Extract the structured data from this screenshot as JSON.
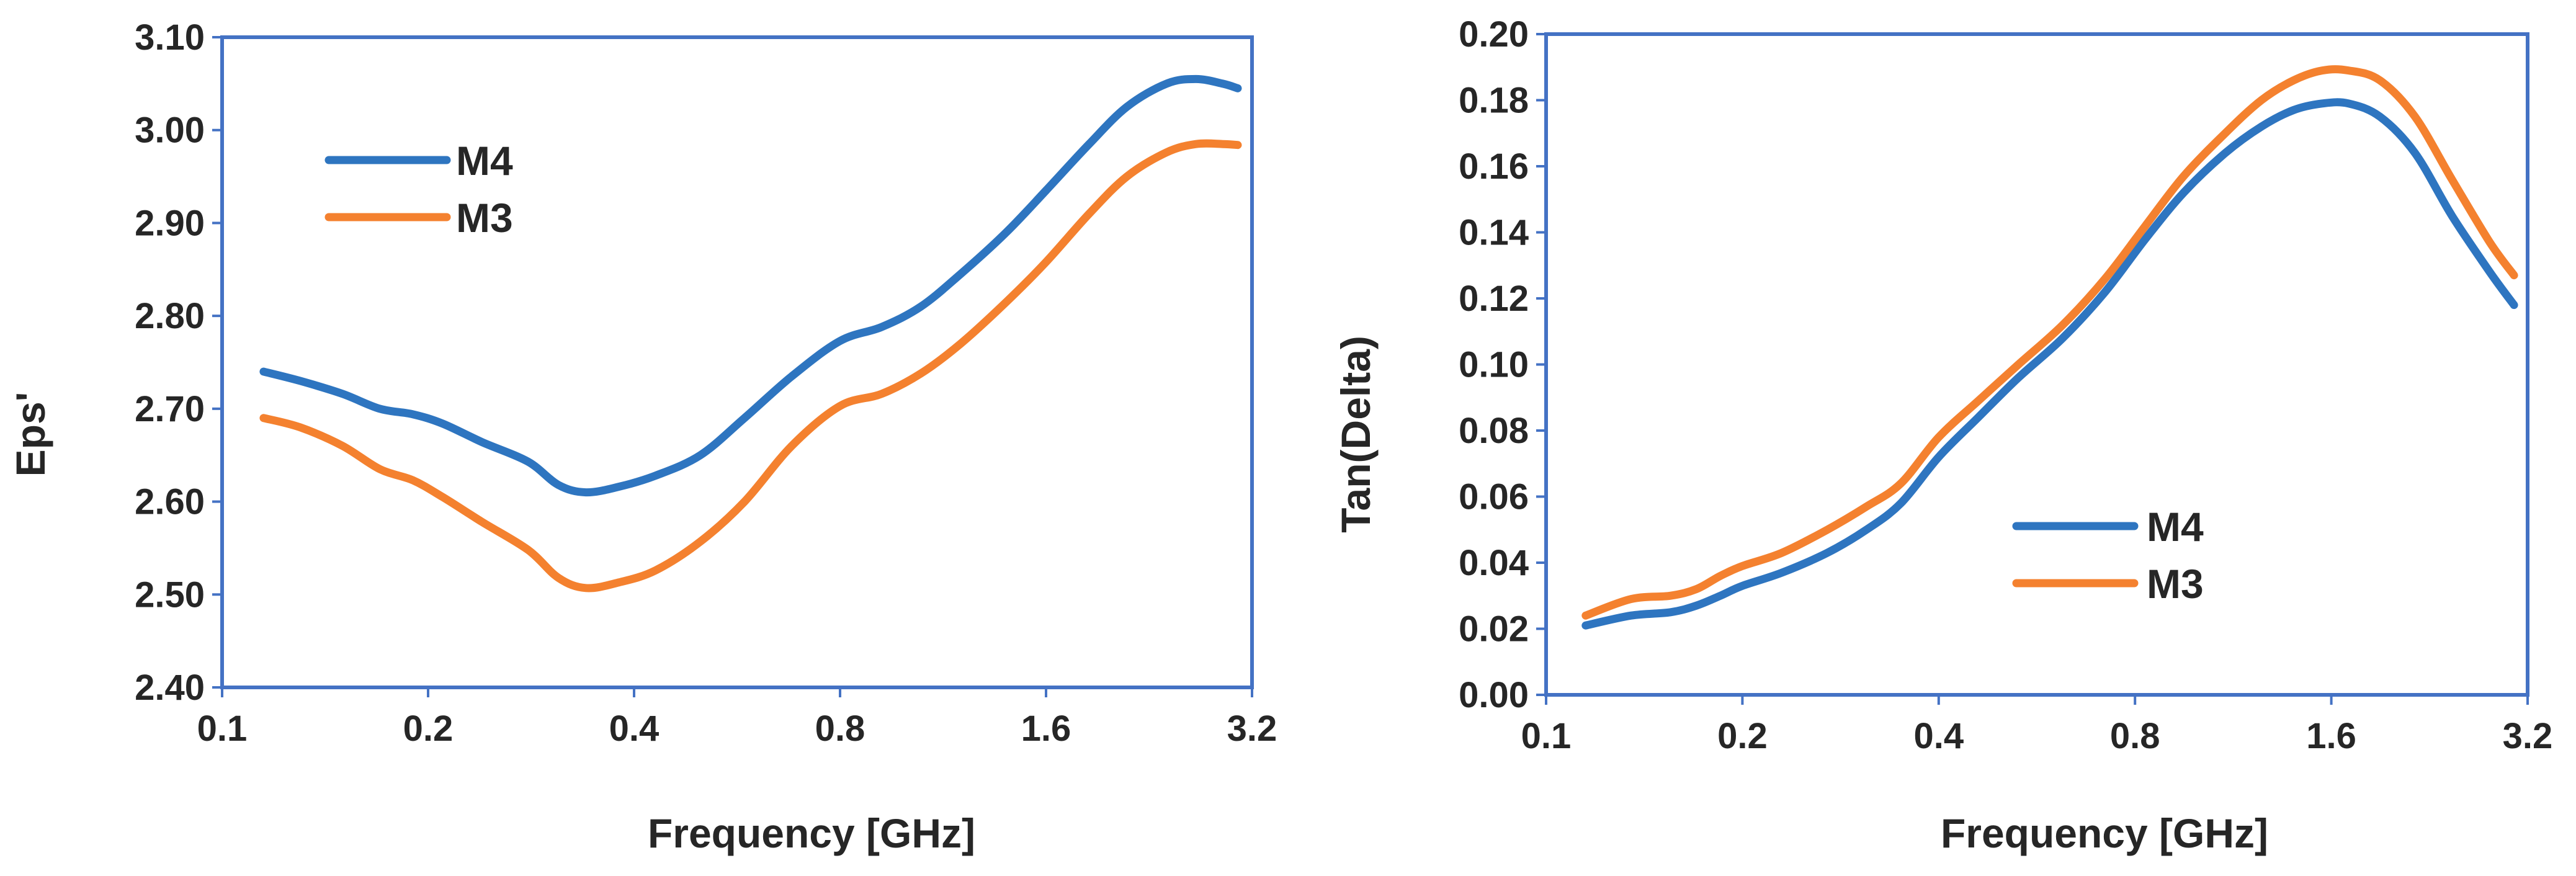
{
  "colors": {
    "frame": "#4472C4",
    "M4": "#2E75C0",
    "M3": "#F4812F"
  },
  "chart_data": [
    {
      "type": "line",
      "title": "",
      "xlabel": "Frequency [GHz]",
      "ylabel": "Eps'",
      "xscale": "log2",
      "xlim": [
        0.1,
        3.2
      ],
      "ylim": [
        2.4,
        3.1
      ],
      "xticks": [
        "0.1",
        "0.2",
        "0.4",
        "0.8",
        "1.6",
        "3.2"
      ],
      "xtick_values": [
        0.1,
        0.2,
        0.4,
        0.8,
        1.6,
        3.2
      ],
      "yticks": [
        "2.40",
        "2.50",
        "2.60",
        "2.70",
        "2.80",
        "2.90",
        "3.00",
        "3.10"
      ],
      "ytick_values": [
        2.4,
        2.5,
        2.6,
        2.7,
        2.8,
        2.9,
        3.0,
        3.1
      ],
      "legend_position": "top-left",
      "series": [
        {
          "name": "M4",
          "x": [
            0.115,
            0.13,
            0.15,
            0.17,
            0.19,
            0.21,
            0.24,
            0.28,
            0.31,
            0.34,
            0.38,
            0.43,
            0.5,
            0.58,
            0.68,
            0.8,
            0.92,
            1.05,
            1.2,
            1.4,
            1.6,
            1.85,
            2.1,
            2.4,
            2.65,
            2.9,
            3.05
          ],
          "values": [
            2.74,
            2.73,
            2.716,
            2.7,
            2.694,
            2.684,
            2.664,
            2.643,
            2.618,
            2.61,
            2.616,
            2.628,
            2.65,
            2.69,
            2.735,
            2.773,
            2.788,
            2.81,
            2.845,
            2.89,
            2.935,
            2.985,
            3.025,
            3.05,
            3.055,
            3.05,
            3.045
          ]
        },
        {
          "name": "M3",
          "x": [
            0.115,
            0.13,
            0.15,
            0.17,
            0.19,
            0.21,
            0.24,
            0.28,
            0.31,
            0.34,
            0.38,
            0.43,
            0.5,
            0.58,
            0.68,
            0.8,
            0.92,
            1.05,
            1.2,
            1.4,
            1.6,
            1.85,
            2.1,
            2.4,
            2.65,
            2.9,
            3.05
          ],
          "values": [
            2.69,
            2.68,
            2.66,
            2.635,
            2.623,
            2.605,
            2.578,
            2.548,
            2.518,
            2.507,
            2.513,
            2.526,
            2.557,
            2.6,
            2.66,
            2.703,
            2.716,
            2.738,
            2.77,
            2.815,
            2.858,
            2.91,
            2.95,
            2.976,
            2.985,
            2.985,
            2.984
          ]
        }
      ]
    },
    {
      "type": "line",
      "title": "",
      "xlabel": "Frequency [GHz]",
      "ylabel": "Tan(Delta)",
      "xscale": "log2",
      "xlim": [
        0.1,
        3.2
      ],
      "ylim": [
        0.0,
        0.2
      ],
      "xticks": [
        "0.1",
        "0.2",
        "0.4",
        "0.8",
        "1.6",
        "3.2"
      ],
      "xtick_values": [
        0.1,
        0.2,
        0.4,
        0.8,
        1.6,
        3.2
      ],
      "yticks": [
        "0.00",
        "0.02",
        "0.04",
        "0.06",
        "0.08",
        "0.10",
        "0.12",
        "0.14",
        "0.16",
        "0.18",
        "0.20"
      ],
      "ytick_values": [
        0.0,
        0.02,
        0.04,
        0.06,
        0.08,
        0.1,
        0.12,
        0.14,
        0.16,
        0.18,
        0.2
      ],
      "legend_position": "bottom-right",
      "series": [
        {
          "name": "M4",
          "x": [
            0.115,
            0.135,
            0.155,
            0.17,
            0.185,
            0.2,
            0.23,
            0.27,
            0.31,
            0.35,
            0.4,
            0.46,
            0.53,
            0.62,
            0.72,
            0.83,
            0.95,
            1.1,
            1.25,
            1.4,
            1.55,
            1.7,
            1.9,
            2.15,
            2.45,
            2.8,
            3.05
          ],
          "values": [
            0.021,
            0.024,
            0.025,
            0.027,
            0.03,
            0.033,
            0.037,
            0.043,
            0.05,
            0.058,
            0.072,
            0.084,
            0.096,
            0.108,
            0.122,
            0.138,
            0.152,
            0.164,
            0.172,
            0.177,
            0.179,
            0.179,
            0.175,
            0.164,
            0.145,
            0.128,
            0.118
          ]
        },
        {
          "name": "M3",
          "x": [
            0.115,
            0.135,
            0.155,
            0.17,
            0.185,
            0.2,
            0.23,
            0.27,
            0.31,
            0.35,
            0.4,
            0.46,
            0.53,
            0.62,
            0.72,
            0.83,
            0.95,
            1.1,
            1.25,
            1.4,
            1.55,
            1.7,
            1.9,
            2.15,
            2.45,
            2.8,
            3.05
          ],
          "values": [
            0.024,
            0.029,
            0.03,
            0.032,
            0.036,
            0.039,
            0.043,
            0.05,
            0.057,
            0.064,
            0.078,
            0.089,
            0.1,
            0.112,
            0.126,
            0.142,
            0.157,
            0.17,
            0.18,
            0.186,
            0.189,
            0.189,
            0.186,
            0.175,
            0.156,
            0.137,
            0.127
          ]
        }
      ]
    }
  ]
}
